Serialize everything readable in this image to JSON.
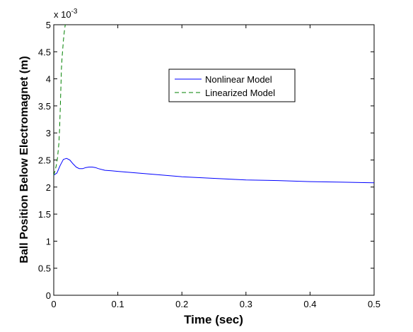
{
  "chart_data": {
    "type": "line",
    "xlabel": "Time (sec)",
    "ylabel": "Ball Position Below Electromagnet (m)",
    "y_exponent_base": "x 10",
    "y_exponent_power": "-3",
    "xlim": [
      0,
      0.5
    ],
    "ylim": [
      0,
      5
    ],
    "x_ticks": [
      0,
      0.1,
      0.2,
      0.3,
      0.4,
      0.5
    ],
    "x_tick_labels": [
      "0",
      "0.1",
      "0.2",
      "0.3",
      "0.4",
      "0.5"
    ],
    "y_ticks": [
      0,
      0.5,
      1,
      1.5,
      2,
      2.5,
      3,
      3.5,
      4,
      4.5,
      5
    ],
    "y_tick_labels": [
      "0",
      "0.5",
      "1",
      "1.5",
      "2",
      "2.5",
      "3",
      "3.5",
      "4",
      "4.5",
      "5"
    ],
    "grid": false,
    "legend_position": "upper-center-right",
    "series": [
      {
        "name": "Nonlinear Model",
        "color": "#0000ff",
        "style": "solid",
        "x": [
          0,
          0.005,
          0.01,
          0.015,
          0.02,
          0.025,
          0.03,
          0.035,
          0.04,
          0.045,
          0.05,
          0.055,
          0.06,
          0.065,
          0.07,
          0.08,
          0.09,
          0.1,
          0.12,
          0.15,
          0.2,
          0.25,
          0.3,
          0.35,
          0.4,
          0.45,
          0.5
        ],
        "y": [
          2.22,
          2.26,
          2.4,
          2.51,
          2.53,
          2.5,
          2.43,
          2.37,
          2.34,
          2.34,
          2.36,
          2.37,
          2.37,
          2.36,
          2.34,
          2.31,
          2.3,
          2.29,
          2.27,
          2.24,
          2.19,
          2.16,
          2.13,
          2.12,
          2.1,
          2.09,
          2.08
        ]
      },
      {
        "name": "Linearized Model",
        "color": "#008000",
        "style": "dashed",
        "x": [
          0,
          0.002,
          0.004,
          0.006,
          0.008,
          0.009,
          0.01,
          0.011,
          0.012,
          0.013,
          0.014,
          0.015,
          0.016,
          0.017,
          0.018
        ],
        "y": [
          2.22,
          2.3,
          2.4,
          2.55,
          2.8,
          3.05,
          3.4,
          3.8,
          4.2,
          4.4,
          4.55,
          4.7,
          4.82,
          4.92,
          5.0
        ]
      }
    ]
  }
}
